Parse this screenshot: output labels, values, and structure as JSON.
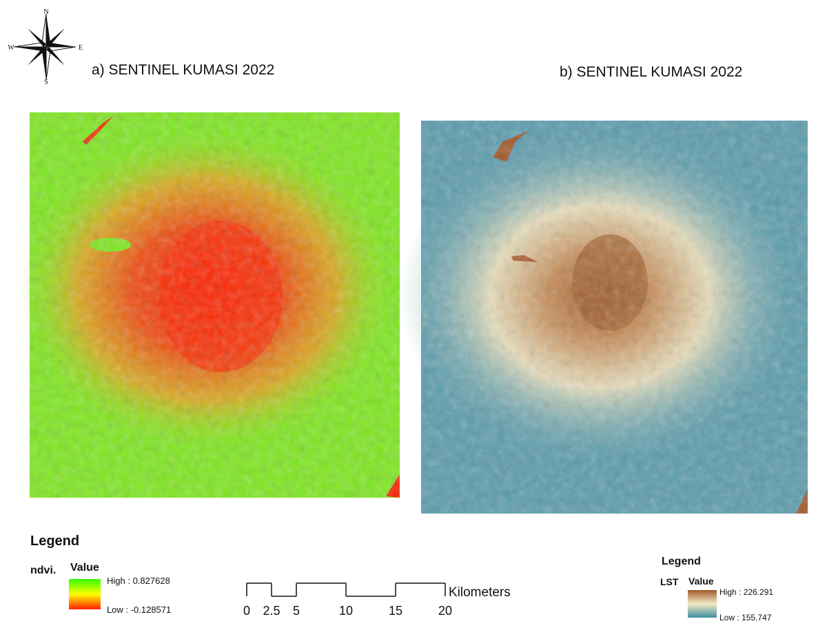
{
  "compass": {
    "n": "N",
    "s": "S",
    "e": "E",
    "w": "W"
  },
  "maps": [
    {
      "title": "a) SENTINEL KUMASI 2022"
    },
    {
      "title": "b) SENTINEL KUMASI 2022"
    }
  ],
  "legend_left": {
    "heading": "Legend",
    "layer": "ndvi.",
    "field": "Value",
    "high": "High : 0.827628",
    "low": "Low : -0.128571"
  },
  "legend_right": {
    "heading": "Legend",
    "layer": "LST",
    "field": "Value",
    "high": "High : 226.291",
    "low": "Low : 155.747"
  },
  "scale_bar": {
    "ticks": [
      0,
      2.5,
      5,
      10,
      15,
      20
    ],
    "unit": "Kilometers"
  }
}
